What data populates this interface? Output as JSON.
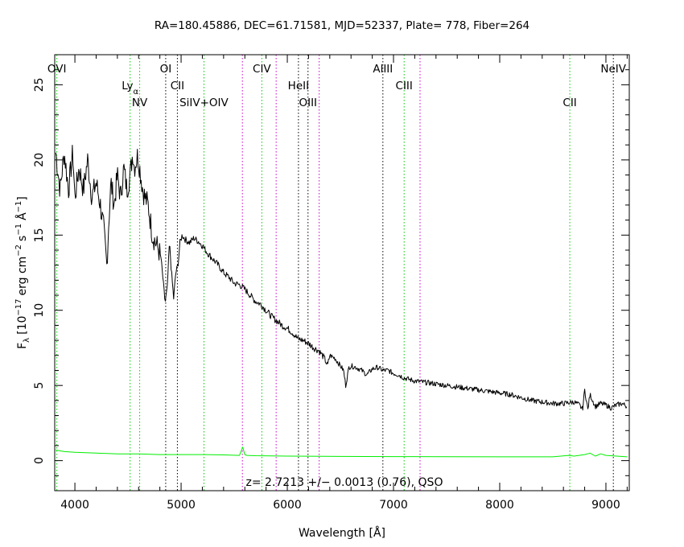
{
  "chart_data": {
    "type": "line",
    "title": "RA=180.45886, DEC=61.71581, MJD=52337, Plate= 778, Fiber=264",
    "xlabel": "Wavelength [Å]",
    "ylabel_parts": {
      "f": "F",
      "sub": "λ",
      "pre": "[10",
      "e1": "−17",
      "mid1": "erg cm",
      "e2": "−2",
      "mid2": "s",
      "e3": "−1",
      "mid3": "Å",
      "e4": "−1",
      "close": "]"
    },
    "xlim": [
      3810,
      9220
    ],
    "ylim": [
      -2,
      27
    ],
    "xticks": [
      4000,
      5000,
      6000,
      7000,
      8000,
      9000
    ],
    "yticks": [
      0,
      5,
      10,
      15,
      20,
      25
    ],
    "annotation": "z= 2.7213 +/− 0.0013 (0.76), QSO",
    "colors": {
      "spectrum": "#000000",
      "error": "#00ee00",
      "emission": "#00cc00",
      "absorption": "#000000",
      "sky": "#cc00cc"
    },
    "series": [
      {
        "role": "flux",
        "x": [
          3820,
          3860,
          3900,
          3940,
          3980,
          4000,
          4040,
          4080,
          4120,
          4160,
          4200,
          4240,
          4270,
          4300,
          4320,
          4340,
          4370,
          4400,
          4430,
          4460,
          4490,
          4520,
          4545,
          4560,
          4590,
          4610,
          4640,
          4660,
          4690,
          4710,
          4730,
          4760,
          4790,
          4810,
          4830,
          4850,
          4870,
          4890,
          4910,
          4930,
          4950,
          4970,
          4990,
          5010,
          5040,
          5080,
          5120,
          5160,
          5200,
          5250,
          5300,
          5350,
          5400,
          5450,
          5500,
          5550,
          5600,
          5650,
          5700,
          5750,
          5800,
          5850,
          5900,
          5950,
          6000,
          6050,
          6100,
          6150,
          6200,
          6250,
          6300,
          6350,
          6380,
          6400,
          6450,
          6500,
          6530,
          6550,
          6580,
          6600,
          6650,
          6700,
          6750,
          6800,
          6850,
          6900,
          6950,
          7000,
          7050,
          7100,
          7150,
          7200,
          7300,
          7400,
          7500,
          7600,
          7700,
          7800,
          7900,
          8000,
          8100,
          8200,
          8300,
          8400,
          8500,
          8600,
          8700,
          8750,
          8780,
          8800,
          8830,
          8850,
          8900,
          8950,
          9000,
          9050,
          9100,
          9150,
          9200
        ],
        "y": [
          20.5,
          18.0,
          20.5,
          18.0,
          20.5,
          17.5,
          19.5,
          18.0,
          20.0,
          17.5,
          18.5,
          17.0,
          15.5,
          13.0,
          16.0,
          18.5,
          17.0,
          19.0,
          17.5,
          19.5,
          18.0,
          19.0,
          20.5,
          19.5,
          20.3,
          19.5,
          18.0,
          17.5,
          17.0,
          16.0,
          15.0,
          14.5,
          14.0,
          13.5,
          12.0,
          10.5,
          11.5,
          14.5,
          12.5,
          10.8,
          12.5,
          13.0,
          14.5,
          15.0,
          14.7,
          14.5,
          14.8,
          14.6,
          14.3,
          13.8,
          13.4,
          13.0,
          12.5,
          12.2,
          11.8,
          11.7,
          11.4,
          11.0,
          10.6,
          10.4,
          10.0,
          9.6,
          9.3,
          9.0,
          8.8,
          8.5,
          8.1,
          8.0,
          7.8,
          7.5,
          7.3,
          6.8,
          6.3,
          7.0,
          6.8,
          6.3,
          6.0,
          5.0,
          6.2,
          6.3,
          6.2,
          6.0,
          5.7,
          6.1,
          6.2,
          6.0,
          6.0,
          5.8,
          5.7,
          5.5,
          5.4,
          5.3,
          5.2,
          5.1,
          5.0,
          4.9,
          4.8,
          4.7,
          4.6,
          4.5,
          4.4,
          4.2,
          4.0,
          3.9,
          3.8,
          3.8,
          3.9,
          3.7,
          3.4,
          4.7,
          3.4,
          4.4,
          3.6,
          3.8,
          3.7,
          3.5,
          3.7,
          3.8,
          3.6
        ]
      },
      {
        "role": "error",
        "x": [
          3820,
          3900,
          4000,
          4200,
          4400,
          4600,
          4800,
          5000,
          5200,
          5400,
          5550,
          5580,
          5600,
          5620,
          5700,
          6000,
          6500,
          7000,
          7500,
          8000,
          8500,
          8650,
          8700,
          8800,
          8850,
          8900,
          8950,
          9000,
          9100,
          9200
        ],
        "y": [
          0.7,
          0.6,
          0.55,
          0.5,
          0.45,
          0.45,
          0.4,
          0.4,
          0.4,
          0.38,
          0.35,
          0.9,
          0.4,
          0.35,
          0.33,
          0.3,
          0.28,
          0.27,
          0.26,
          0.25,
          0.25,
          0.35,
          0.3,
          0.4,
          0.5,
          0.3,
          0.45,
          0.35,
          0.3,
          0.25
        ]
      }
    ],
    "lines": [
      {
        "label": "OVI",
        "wave": 3830,
        "kind": "emission",
        "row": 1,
        "sub": ""
      },
      {
        "label": "Ly",
        "wave": 4520,
        "kind": "emission",
        "row": 2,
        "sub": "α"
      },
      {
        "label": "NV",
        "wave": 4610,
        "kind": "emission",
        "row": 3,
        "sub": ""
      },
      {
        "label": "OI",
        "wave": 4855,
        "kind": "absorption",
        "row": 1,
        "sub": ""
      },
      {
        "label": "CII",
        "wave": 4965,
        "kind": "absorption",
        "row": 2,
        "sub": ""
      },
      {
        "label": "SiIV+OIV",
        "wave": 5215,
        "kind": "emission",
        "row": 3,
        "sub": ""
      },
      {
        "label": "CIV",
        "wave": 5760,
        "kind": "emission",
        "row": 1,
        "sub": ""
      },
      {
        "label": "HeII",
        "wave": 6105,
        "kind": "absorption",
        "row": 2,
        "sub": ""
      },
      {
        "label": "OIII",
        "wave": 6195,
        "kind": "absorption",
        "row": 3,
        "sub": ""
      },
      {
        "label": "AlIII",
        "wave": 6900,
        "kind": "absorption",
        "row": 1,
        "sub": ""
      },
      {
        "label": "CIII",
        "wave": 7100,
        "kind": "emission",
        "row": 2,
        "sub": ""
      },
      {
        "label": "CII",
        "wave": 8660,
        "kind": "emission",
        "row": 3,
        "sub": ""
      },
      {
        "label": "NeIV",
        "wave": 9070,
        "kind": "absorption",
        "row": 1,
        "sub": ""
      }
    ],
    "sky_lines": [
      5577,
      5895,
      6300,
      7250
    ]
  }
}
